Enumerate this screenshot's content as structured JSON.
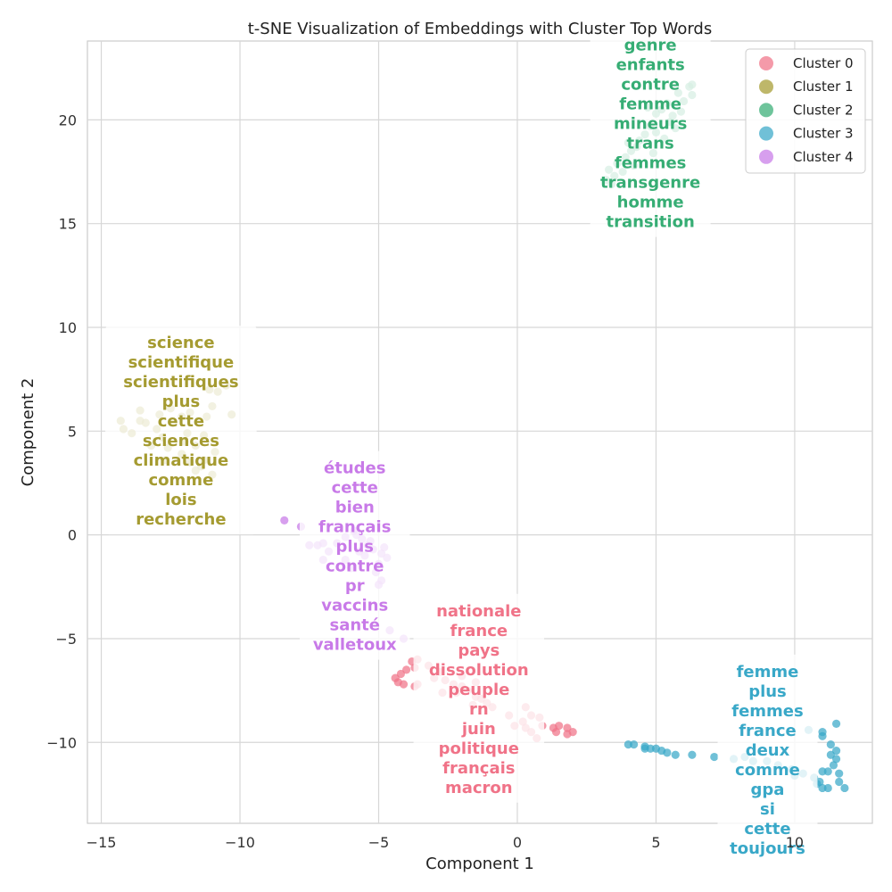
{
  "chart_data": {
    "type": "scatter",
    "title": "t-SNE Visualization of Embeddings with Cluster Top Words",
    "xlabel": "Component 1",
    "ylabel": "Component 2",
    "xlim": [
      -15.5,
      12.8
    ],
    "ylim": [
      -13.9,
      23.8
    ],
    "xticks": [
      -15,
      -10,
      -5,
      0,
      5,
      10
    ],
    "yticks": [
      -10,
      -5,
      0,
      5,
      10,
      15,
      20
    ],
    "xtick_labels": [
      "−15",
      "−10",
      "−5",
      "0",
      "5",
      "10"
    ],
    "ytick_labels": [
      "−10",
      "−5",
      "0",
      "5",
      "10",
      "15",
      "20"
    ],
    "grid": true,
    "legend_position": "top-right",
    "series": [
      {
        "name": "Cluster 0",
        "color": "#f07388",
        "top_words": [
          "nationale",
          "france",
          "pays",
          "dissolution",
          "peuple",
          "rn",
          "juin",
          "politique",
          "français",
          "macron"
        ],
        "points": [
          [
            -3.6,
            -6.0
          ],
          [
            -3.8,
            -6.1
          ],
          [
            -3.7,
            -6.4
          ],
          [
            -4.0,
            -6.5
          ],
          [
            -4.2,
            -6.7
          ],
          [
            -4.4,
            -6.9
          ],
          [
            -4.3,
            -7.1
          ],
          [
            -4.1,
            -7.2
          ],
          [
            -3.6,
            -7.2
          ],
          [
            -3.7,
            -7.3
          ],
          [
            -3.2,
            -6.3
          ],
          [
            -2.8,
            -6.6
          ],
          [
            -3.0,
            -6.9
          ],
          [
            -2.6,
            -7.0
          ],
          [
            -2.3,
            -7.2
          ],
          [
            -2.0,
            -7.3
          ],
          [
            -1.8,
            -7.5
          ],
          [
            -2.7,
            -7.6
          ],
          [
            -2.2,
            -7.6
          ],
          [
            -1.5,
            -7.8
          ],
          [
            -1.3,
            -7.9
          ],
          [
            -1.1,
            -8.1
          ],
          [
            -0.9,
            -8.3
          ],
          [
            -1.6,
            -8.2
          ],
          [
            -0.3,
            -8.7
          ],
          [
            0.3,
            -8.3
          ],
          [
            0.5,
            -8.7
          ],
          [
            0.8,
            -8.8
          ],
          [
            0.2,
            -9.0
          ],
          [
            -0.1,
            -9.2
          ],
          [
            0.3,
            -9.3
          ],
          [
            0.5,
            -9.5
          ],
          [
            0.7,
            -9.8
          ],
          [
            0.9,
            -9.2
          ],
          [
            1.3,
            -9.3
          ],
          [
            1.5,
            -9.2
          ],
          [
            1.8,
            -9.3
          ],
          [
            1.4,
            -9.5
          ],
          [
            1.8,
            -9.6
          ],
          [
            2.0,
            -9.5
          ],
          [
            -2.0,
            -6.8
          ],
          [
            -1.5,
            -7.1
          ]
        ]
      },
      {
        "name": "Cluster 1",
        "color": "#a59b31",
        "top_words": [
          "science",
          "scientifique",
          "scientifiques",
          "plus",
          "cette",
          "sciences",
          "climatique",
          "comme",
          "lois",
          "recherche"
        ],
        "points": [
          [
            -14.3,
            5.5
          ],
          [
            -14.2,
            5.1
          ],
          [
            -13.9,
            4.9
          ],
          [
            -13.6,
            5.5
          ],
          [
            -13.6,
            6.0
          ],
          [
            -13.4,
            5.4
          ],
          [
            -13.0,
            5.1
          ],
          [
            -12.8,
            4.7
          ],
          [
            -12.4,
            5.4
          ],
          [
            -12.1,
            5.7
          ],
          [
            -11.8,
            5.9
          ],
          [
            -11.5,
            5.5
          ],
          [
            -11.2,
            5.7
          ],
          [
            -11.0,
            6.2
          ],
          [
            -10.8,
            6.9
          ],
          [
            -10.5,
            7.2
          ],
          [
            -10.3,
            5.8
          ],
          [
            -12.6,
            4.2
          ],
          [
            -12.1,
            3.9
          ],
          [
            -11.6,
            4.3
          ],
          [
            -11.3,
            3.6
          ],
          [
            -11.6,
            3.1
          ],
          [
            -11.0,
            2.9
          ],
          [
            -11.3,
            4.8
          ],
          [
            -12.9,
            5.8
          ],
          [
            -11.9,
            4.9
          ],
          [
            -12.5,
            6.1
          ],
          [
            -11.1,
            7.0
          ],
          [
            -13.2,
            4.3
          ],
          [
            -10.9,
            4.0
          ],
          [
            -12.0,
            4.5
          ],
          [
            -11.4,
            3.3
          ],
          [
            -12.7,
            3.6
          ],
          [
            -11.8,
            3.5
          ]
        ]
      },
      {
        "name": "Cluster 2",
        "color": "#36ad74",
        "top_words": [
          "genre",
          "enfants",
          "contre",
          "femme",
          "mineurs",
          "trans",
          "femmes",
          "transgenre",
          "homme",
          "transition"
        ],
        "points": [
          [
            3.2,
            17.1
          ],
          [
            3.3,
            17.6
          ],
          [
            3.5,
            17.3
          ],
          [
            3.6,
            17.9
          ],
          [
            3.9,
            18.2
          ],
          [
            4.1,
            18.5
          ],
          [
            4.3,
            18.7
          ],
          [
            4.6,
            19.3
          ],
          [
            4.8,
            19.7
          ],
          [
            5.0,
            20.3
          ],
          [
            5.2,
            20.5
          ],
          [
            5.4,
            20.8
          ],
          [
            5.6,
            20.2
          ],
          [
            5.8,
            21.3
          ],
          [
            6.0,
            20.9
          ],
          [
            6.2,
            21.6
          ],
          [
            6.3,
            21.2
          ],
          [
            6.3,
            21.7
          ],
          [
            5.5,
            19.9
          ],
          [
            5.0,
            19.4
          ],
          [
            4.4,
            19.0
          ],
          [
            3.8,
            17.5
          ],
          [
            5.3,
            19.1
          ],
          [
            4.0,
            18.9
          ],
          [
            4.7,
            20.6
          ],
          [
            5.9,
            20.4
          ],
          [
            3.4,
            16.9
          ],
          [
            4.9,
            18.4
          ],
          [
            5.7,
            19.6
          ],
          [
            4.2,
            17.8
          ]
        ]
      },
      {
        "name": "Cluster 3",
        "color": "#39a8c8",
        "top_words": [
          "femme",
          "plus",
          "femmes",
          "france",
          "deux",
          "comme",
          "gpa",
          "si",
          "cette",
          "toujours"
        ],
        "points": [
          [
            4.0,
            -10.1
          ],
          [
            4.2,
            -10.1
          ],
          [
            4.6,
            -10.2
          ],
          [
            4.8,
            -10.3
          ],
          [
            4.6,
            -10.3
          ],
          [
            5.0,
            -10.3
          ],
          [
            5.2,
            -10.4
          ],
          [
            5.4,
            -10.5
          ],
          [
            5.7,
            -10.6
          ],
          [
            6.3,
            -10.6
          ],
          [
            7.1,
            -10.7
          ],
          [
            7.8,
            -10.8
          ],
          [
            8.2,
            -10.7
          ],
          [
            8.5,
            -10.9
          ],
          [
            9.0,
            -10.9
          ],
          [
            9.4,
            -11.1
          ],
          [
            9.9,
            -11.3
          ],
          [
            10.3,
            -11.5
          ],
          [
            10.7,
            -11.7
          ],
          [
            10.9,
            -11.9
          ],
          [
            11.0,
            -12.2
          ],
          [
            11.2,
            -12.2
          ],
          [
            11.6,
            -11.9
          ],
          [
            11.8,
            -12.2
          ],
          [
            11.0,
            -11.4
          ],
          [
            11.2,
            -11.4
          ],
          [
            11.4,
            -11.1
          ],
          [
            11.5,
            -10.8
          ],
          [
            11.3,
            -10.6
          ],
          [
            11.5,
            -10.4
          ],
          [
            11.3,
            -10.1
          ],
          [
            11.0,
            -9.7
          ],
          [
            11.0,
            -9.5
          ],
          [
            11.5,
            -9.1
          ],
          [
            10.5,
            -9.4
          ],
          [
            11.6,
            -11.5
          ],
          [
            10.0,
            -11.6
          ],
          [
            10.8,
            -12.0
          ]
        ]
      },
      {
        "name": "Cluster 4",
        "color": "#c87ae8",
        "top_words": [
          "études",
          "cette",
          "bien",
          "français",
          "plus",
          "contre",
          "pr",
          "vaccins",
          "santé",
          "valletoux"
        ],
        "points": [
          [
            -8.4,
            0.7
          ],
          [
            -7.8,
            0.4
          ],
          [
            -7.5,
            -0.5
          ],
          [
            -7.2,
            -0.5
          ],
          [
            -7.0,
            -0.4
          ],
          [
            -7.0,
            -1.2
          ],
          [
            -6.8,
            -0.8
          ],
          [
            -6.5,
            -0.4
          ],
          [
            -6.2,
            -0.1
          ],
          [
            -5.9,
            0.2
          ],
          [
            -5.6,
            -0.2
          ],
          [
            -5.4,
            -0.5
          ],
          [
            -5.2,
            -0.7
          ],
          [
            -4.9,
            -0.9
          ],
          [
            -4.7,
            -1.1
          ],
          [
            -5.0,
            -1.4
          ],
          [
            -5.1,
            -1.8
          ],
          [
            -4.9,
            -2.2
          ],
          [
            -5.0,
            -2.4
          ],
          [
            -6.2,
            -1.2
          ],
          [
            -5.7,
            -0.8
          ],
          [
            -4.6,
            -4.6
          ],
          [
            -4.1,
            -5.0
          ],
          [
            -5.3,
            -0.3
          ],
          [
            -6.0,
            -1.6
          ],
          [
            -5.5,
            -1.0
          ],
          [
            -4.8,
            -0.6
          ],
          [
            -5.8,
            0.0
          ]
        ]
      }
    ]
  }
}
